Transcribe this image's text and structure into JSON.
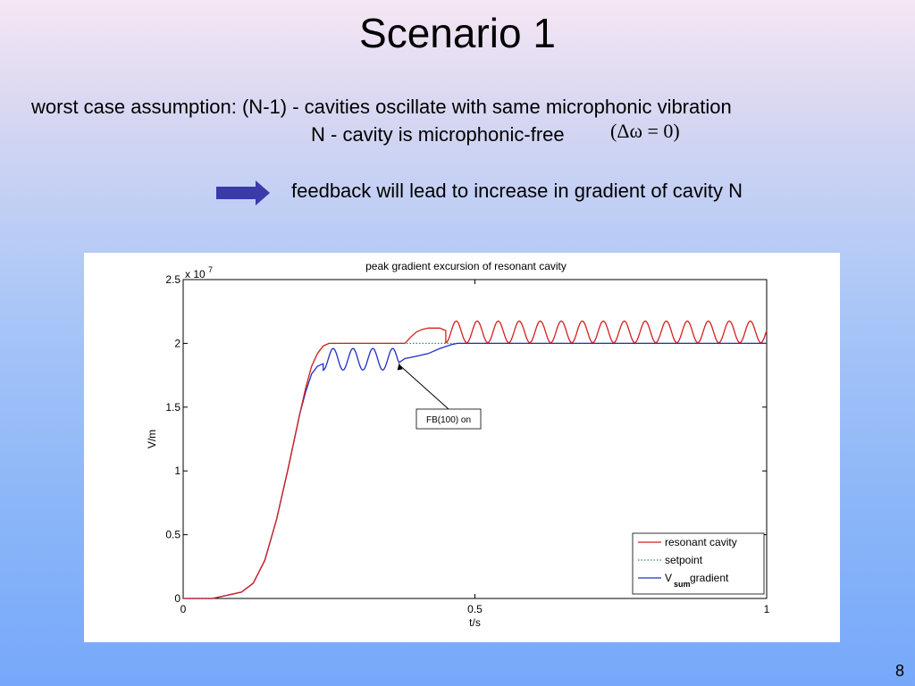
{
  "slide": {
    "title": "Scenario 1",
    "line1": "worst case assumption: (N-1) - cavities oscillate with same microphonic vibration",
    "line2": "N - cavity is microphonic-free",
    "formula": "(Δω = 0)",
    "line3": "feedback will lead to increase in gradient of cavity  N",
    "page_number": "8"
  },
  "colors": {
    "resonant": "#d42020",
    "setpoint": "#2e8b57",
    "vsum": "#1f2fc8",
    "arrow": "#3a3aa8"
  },
  "chart_data": {
    "type": "line",
    "title": "peak gradient excursion of resonant cavity",
    "xlabel": "t/s",
    "ylabel": "V/m",
    "y_multiplier": "x 10",
    "y_multiplier_exp": "7",
    "xlim": [
      0,
      1
    ],
    "ylim": [
      0,
      2.5
    ],
    "xticks": [
      0,
      0.5,
      1
    ],
    "xtick_labels": [
      "0",
      "0.5",
      "1"
    ],
    "yticks": [
      0,
      0.5,
      1,
      1.5,
      2,
      2.5
    ],
    "ytick_labels": [
      "0",
      "0.5",
      "1",
      "1.5",
      "2",
      "2.5"
    ],
    "grid": false,
    "legend_position": "bottom-right",
    "annotation": {
      "text": "FB(100) on",
      "x": 0.37,
      "y": 1.86
    },
    "series": [
      {
        "name": "resonant cavity",
        "style": "solid",
        "x": [
          0,
          0.05,
          0.1,
          0.12,
          0.14,
          0.16,
          0.18,
          0.2,
          0.21,
          0.22,
          0.23,
          0.24,
          0.25,
          0.27,
          0.3,
          0.35,
          0.38,
          0.39,
          0.4,
          0.41,
          0.42,
          0.44,
          0.45,
          0.46,
          0.47,
          0.48,
          0.49,
          0.5,
          1.0
        ],
        "y": [
          0,
          0.0,
          0.05,
          0.12,
          0.3,
          0.62,
          1.02,
          1.45,
          1.65,
          1.82,
          1.92,
          1.98,
          2.0,
          2.0,
          2.0,
          2.0,
          2.0,
          2.05,
          2.09,
          2.11,
          2.12,
          2.12,
          2.1,
          2.05,
          2.02,
          2.07,
          2.13,
          2.1,
          2.1
        ],
        "oscillation": {
          "from_x": 0.45,
          "to_x": 1.0,
          "center": 2.09,
          "amplitude": 0.085,
          "period": 0.036
        }
      },
      {
        "name": "setpoint",
        "style": "dotted",
        "x": [
          0,
          0.05,
          0.1,
          0.12,
          0.14,
          0.16,
          0.18,
          0.2,
          0.21,
          0.22,
          0.23,
          0.24,
          0.25,
          0.27,
          1.0
        ],
        "y": [
          0,
          0.0,
          0.05,
          0.12,
          0.3,
          0.62,
          1.02,
          1.45,
          1.65,
          1.82,
          1.92,
          1.98,
          2.0,
          2.0,
          2.0
        ]
      },
      {
        "name": "V_sum gradient",
        "legend_main": "V",
        "legend_sub": "sum",
        "legend_rest": " gradient",
        "style": "solid",
        "x": [
          0,
          0.05,
          0.1,
          0.12,
          0.14,
          0.16,
          0.18,
          0.2,
          0.21,
          0.22,
          0.23,
          0.24,
          0.25,
          0.3,
          0.35,
          0.37,
          0.38,
          0.4,
          0.42,
          0.44,
          0.46,
          0.47,
          1.0
        ],
        "y": [
          0,
          0.0,
          0.05,
          0.12,
          0.3,
          0.62,
          1.02,
          1.45,
          1.62,
          1.76,
          1.82,
          1.84,
          1.86,
          1.86,
          1.86,
          1.85,
          1.88,
          1.9,
          1.92,
          1.96,
          1.99,
          2.0,
          2.0
        ],
        "oscillation": {
          "from_x": 0.24,
          "to_x": 0.37,
          "center": 1.875,
          "amplitude": 0.085,
          "period": 0.034
        }
      }
    ]
  }
}
